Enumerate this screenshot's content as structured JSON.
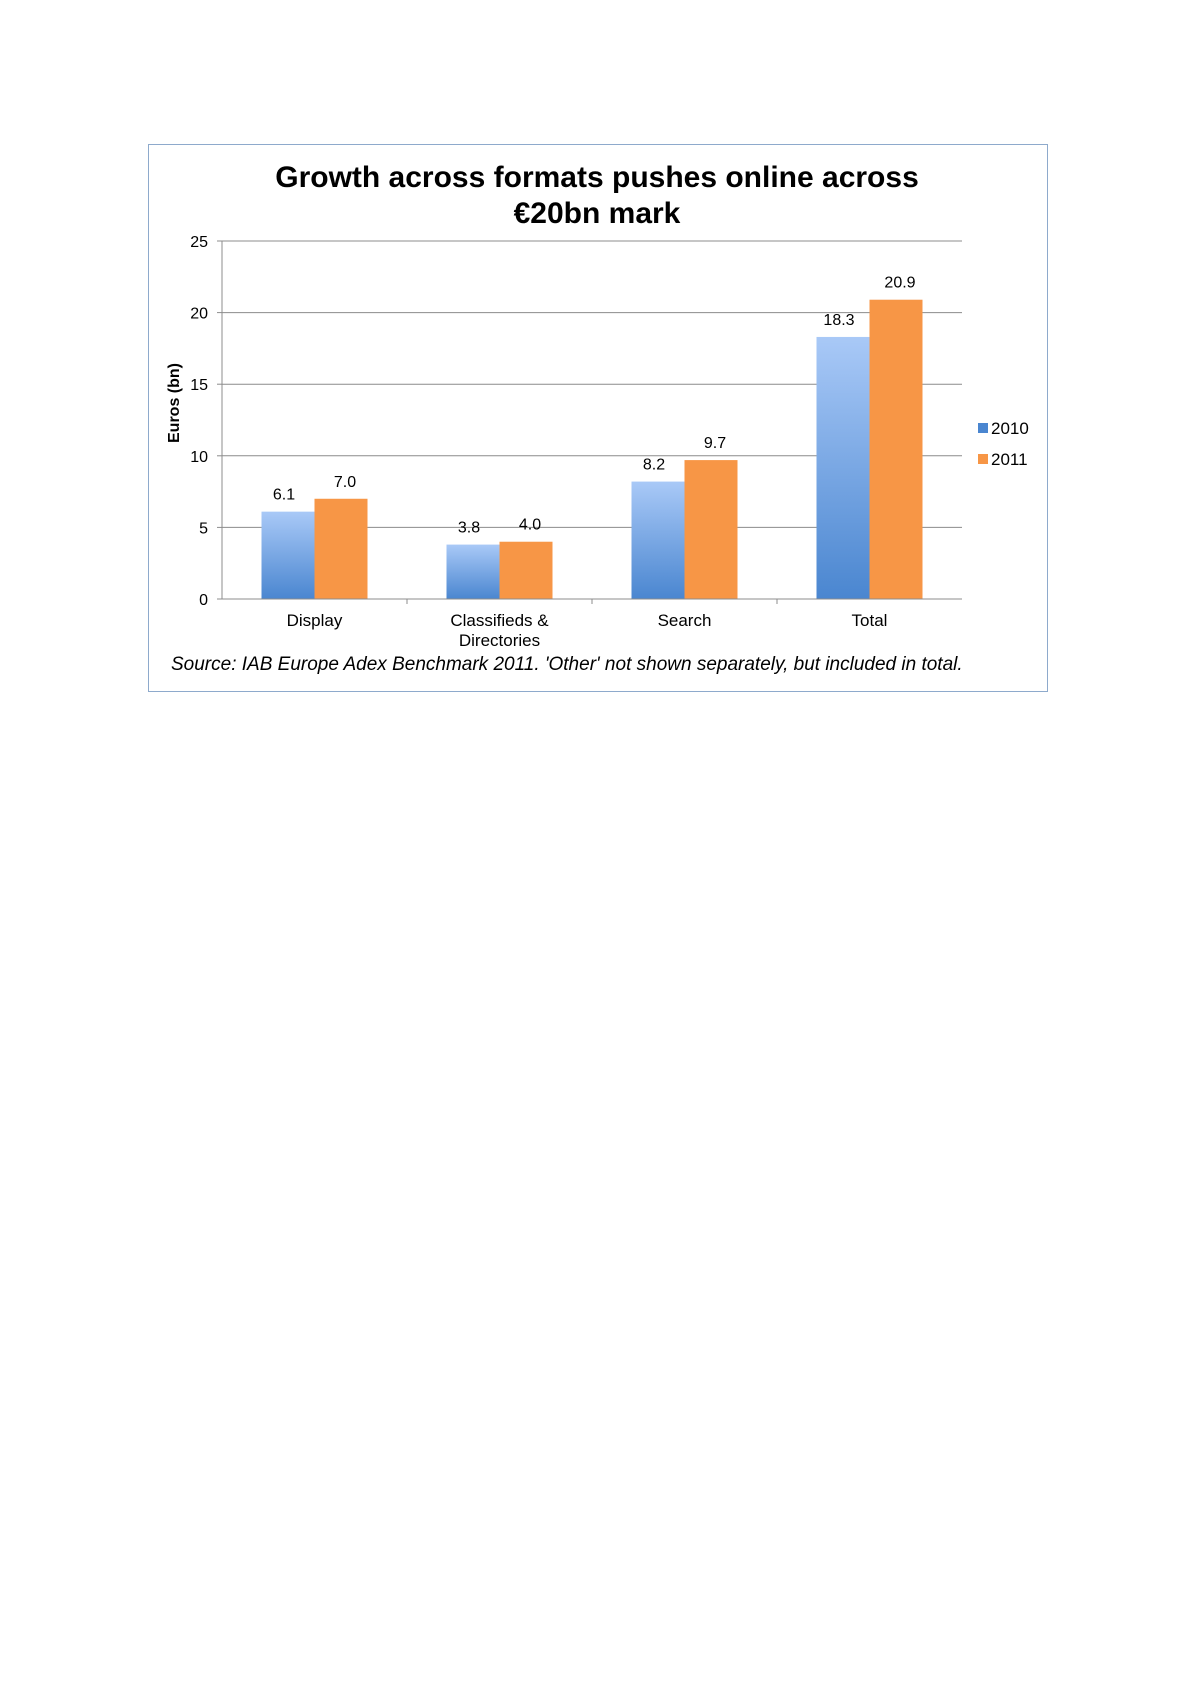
{
  "chart_data": {
    "type": "bar",
    "title_lines": [
      "Growth across formats pushes online across",
      "€20bn mark"
    ],
    "xlabel": "",
    "ylabel": "Euros (bn)",
    "categories": [
      [
        "Display"
      ],
      [
        "Classifieds &",
        "Directories"
      ],
      [
        "Search"
      ],
      [
        "Total"
      ]
    ],
    "series": [
      {
        "name": "2010",
        "values": [
          6.1,
          3.8,
          8.2,
          18.3
        ],
        "labels": [
          "6.1",
          "3.8",
          "8.2",
          "18.3"
        ],
        "color_top": "#a9c9f7",
        "color_bottom": "#4a86d0"
      },
      {
        "name": "2011",
        "values": [
          7.0,
          4.0,
          9.7,
          20.9
        ],
        "labels": [
          "7.0",
          "4.0",
          "9.7",
          "20.9"
        ],
        "color": "#f79646"
      }
    ],
    "ylim": [
      0,
      25
    ],
    "yticks": [
      0,
      5,
      10,
      15,
      20,
      25
    ],
    "grid": true,
    "legend_position": "right",
    "gridline_color": "#8c8c8c",
    "frame_color": "#8eaacc"
  },
  "source_note": "Source: IAB Europe Adex Benchmark 2011. 'Other' not shown separately, but included in total."
}
